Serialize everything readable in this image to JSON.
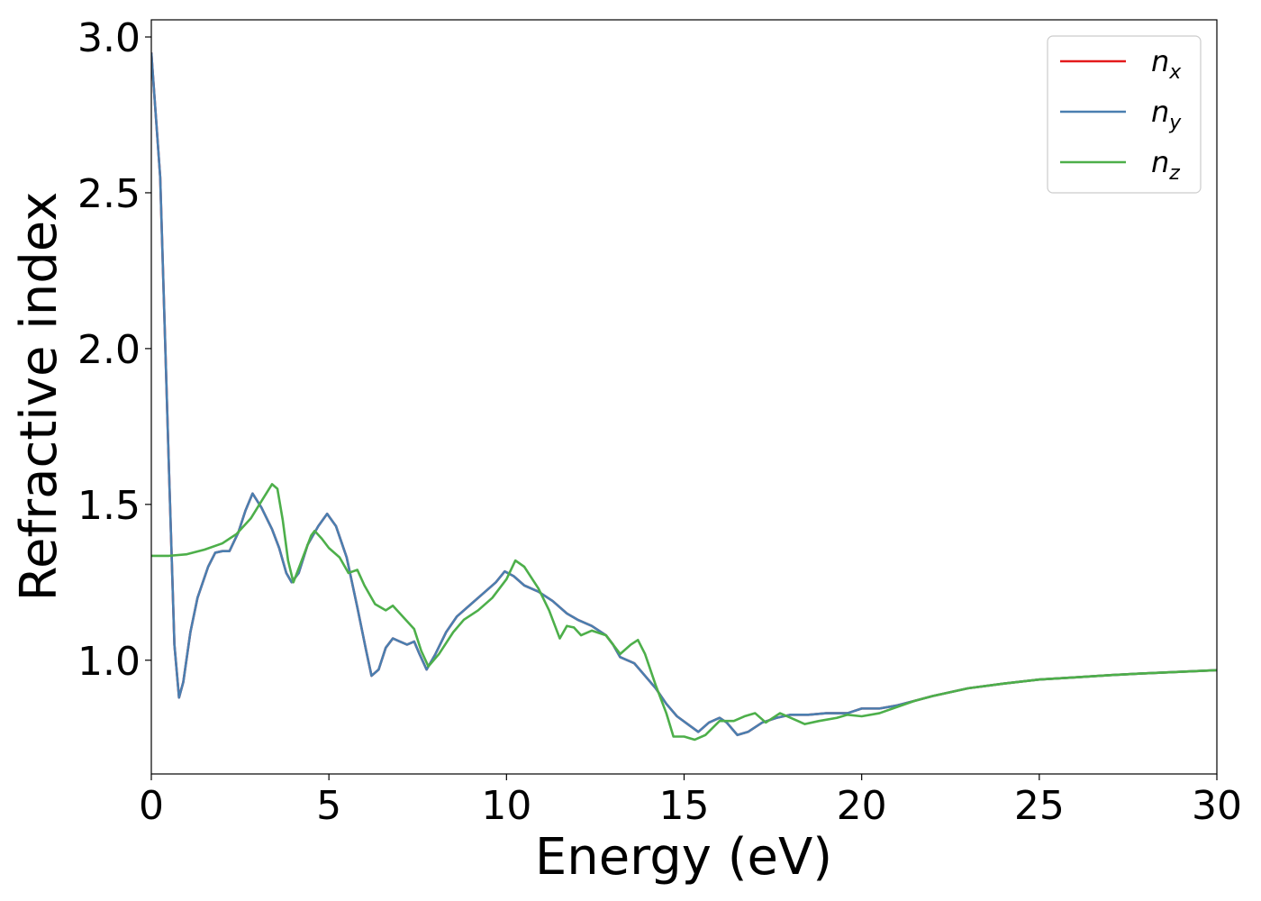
{
  "chart_data": {
    "type": "line",
    "title": "",
    "xlabel": "Energy (eV)",
    "ylabel": "Refractive index",
    "xlim": [
      0,
      30
    ],
    "ylim": [
      0.635,
      3.055
    ],
    "xticks": [
      0,
      5,
      10,
      15,
      20,
      25,
      30
    ],
    "xtick_labels": [
      "0",
      "5",
      "10",
      "15",
      "20",
      "25",
      "30"
    ],
    "yticks": [
      1.0,
      1.5,
      2.0,
      2.5,
      3.0
    ],
    "ytick_labels": [
      "1.0",
      "1.5",
      "2.0",
      "2.5",
      "3.0"
    ],
    "grid": false,
    "legend_position": "top-right",
    "series": [
      {
        "name": "n_x",
        "label_main": "n",
        "label_sub": "x",
        "color": "#e41a1c",
        "points": [
          [
            0,
            2.95
          ],
          [
            0.25,
            2.55
          ],
          [
            0.5,
            1.6
          ],
          [
            0.65,
            1.05
          ],
          [
            0.78,
            0.88
          ],
          [
            0.9,
            0.93
          ],
          [
            1.1,
            1.09
          ],
          [
            1.3,
            1.2
          ],
          [
            1.6,
            1.3
          ],
          [
            1.8,
            1.345
          ],
          [
            2.0,
            1.35
          ],
          [
            2.2,
            1.35
          ],
          [
            2.45,
            1.41
          ],
          [
            2.65,
            1.48
          ],
          [
            2.85,
            1.535
          ],
          [
            3.1,
            1.49
          ],
          [
            3.4,
            1.42
          ],
          [
            3.6,
            1.36
          ],
          [
            3.8,
            1.28
          ],
          [
            3.95,
            1.25
          ],
          [
            4.15,
            1.28
          ],
          [
            4.4,
            1.37
          ],
          [
            4.7,
            1.43
          ],
          [
            4.95,
            1.47
          ],
          [
            5.2,
            1.43
          ],
          [
            5.5,
            1.33
          ],
          [
            5.8,
            1.17
          ],
          [
            6.05,
            1.03
          ],
          [
            6.2,
            0.95
          ],
          [
            6.4,
            0.97
          ],
          [
            6.6,
            1.04
          ],
          [
            6.8,
            1.07
          ],
          [
            7.0,
            1.06
          ],
          [
            7.2,
            1.05
          ],
          [
            7.4,
            1.06
          ],
          [
            7.55,
            1.02
          ],
          [
            7.75,
            0.97
          ],
          [
            8.0,
            1.02
          ],
          [
            8.3,
            1.09
          ],
          [
            8.6,
            1.14
          ],
          [
            9.0,
            1.18
          ],
          [
            9.4,
            1.22
          ],
          [
            9.7,
            1.25
          ],
          [
            9.95,
            1.285
          ],
          [
            10.2,
            1.27
          ],
          [
            10.5,
            1.24
          ],
          [
            10.9,
            1.22
          ],
          [
            11.3,
            1.19
          ],
          [
            11.7,
            1.15
          ],
          [
            12.0,
            1.13
          ],
          [
            12.4,
            1.11
          ],
          [
            12.8,
            1.08
          ],
          [
            13.0,
            1.05
          ],
          [
            13.2,
            1.01
          ],
          [
            13.6,
            0.99
          ],
          [
            13.9,
            0.95
          ],
          [
            14.2,
            0.91
          ],
          [
            14.5,
            0.86
          ],
          [
            14.8,
            0.82
          ],
          [
            15.1,
            0.795
          ],
          [
            15.4,
            0.77
          ],
          [
            15.7,
            0.8
          ],
          [
            16.0,
            0.815
          ],
          [
            16.2,
            0.8
          ],
          [
            16.5,
            0.76
          ],
          [
            16.8,
            0.77
          ],
          [
            17.2,
            0.8
          ],
          [
            17.6,
            0.815
          ],
          [
            18.0,
            0.825
          ],
          [
            18.5,
            0.825
          ],
          [
            19.0,
            0.83
          ],
          [
            19.6,
            0.83
          ],
          [
            20.0,
            0.845
          ],
          [
            20.5,
            0.845
          ],
          [
            21.0,
            0.855
          ],
          [
            21.5,
            0.87
          ],
          [
            22.0,
            0.885
          ],
          [
            23.0,
            0.91
          ],
          [
            24.0,
            0.925
          ],
          [
            25.0,
            0.938
          ],
          [
            26.0,
            0.945
          ],
          [
            27.0,
            0.952
          ],
          [
            28.0,
            0.958
          ],
          [
            29.0,
            0.963
          ],
          [
            30.0,
            0.968
          ]
        ]
      },
      {
        "name": "n_y",
        "label_main": "n",
        "label_sub": "y",
        "color": "#4a7fb0",
        "points": [
          [
            0,
            2.95
          ],
          [
            0.25,
            2.55
          ],
          [
            0.5,
            1.6
          ],
          [
            0.65,
            1.05
          ],
          [
            0.78,
            0.88
          ],
          [
            0.9,
            0.93
          ],
          [
            1.1,
            1.09
          ],
          [
            1.3,
            1.2
          ],
          [
            1.6,
            1.3
          ],
          [
            1.8,
            1.345
          ],
          [
            2.0,
            1.35
          ],
          [
            2.2,
            1.35
          ],
          [
            2.45,
            1.41
          ],
          [
            2.65,
            1.48
          ],
          [
            2.85,
            1.535
          ],
          [
            3.1,
            1.49
          ],
          [
            3.4,
            1.42
          ],
          [
            3.6,
            1.36
          ],
          [
            3.8,
            1.28
          ],
          [
            3.95,
            1.25
          ],
          [
            4.15,
            1.28
          ],
          [
            4.4,
            1.37
          ],
          [
            4.7,
            1.43
          ],
          [
            4.95,
            1.47
          ],
          [
            5.2,
            1.43
          ],
          [
            5.5,
            1.33
          ],
          [
            5.8,
            1.17
          ],
          [
            6.05,
            1.03
          ],
          [
            6.2,
            0.95
          ],
          [
            6.4,
            0.97
          ],
          [
            6.6,
            1.04
          ],
          [
            6.8,
            1.07
          ],
          [
            7.0,
            1.06
          ],
          [
            7.2,
            1.05
          ],
          [
            7.4,
            1.06
          ],
          [
            7.55,
            1.02
          ],
          [
            7.75,
            0.97
          ],
          [
            8.0,
            1.02
          ],
          [
            8.3,
            1.09
          ],
          [
            8.6,
            1.14
          ],
          [
            9.0,
            1.18
          ],
          [
            9.4,
            1.22
          ],
          [
            9.7,
            1.25
          ],
          [
            9.95,
            1.285
          ],
          [
            10.2,
            1.27
          ],
          [
            10.5,
            1.24
          ],
          [
            10.9,
            1.22
          ],
          [
            11.3,
            1.19
          ],
          [
            11.7,
            1.15
          ],
          [
            12.0,
            1.13
          ],
          [
            12.4,
            1.11
          ],
          [
            12.8,
            1.08
          ],
          [
            13.0,
            1.05
          ],
          [
            13.2,
            1.01
          ],
          [
            13.6,
            0.99
          ],
          [
            13.9,
            0.95
          ],
          [
            14.2,
            0.91
          ],
          [
            14.5,
            0.86
          ],
          [
            14.8,
            0.82
          ],
          [
            15.1,
            0.795
          ],
          [
            15.4,
            0.77
          ],
          [
            15.7,
            0.8
          ],
          [
            16.0,
            0.815
          ],
          [
            16.2,
            0.8
          ],
          [
            16.5,
            0.76
          ],
          [
            16.8,
            0.77
          ],
          [
            17.2,
            0.8
          ],
          [
            17.6,
            0.815
          ],
          [
            18.0,
            0.825
          ],
          [
            18.5,
            0.825
          ],
          [
            19.0,
            0.83
          ],
          [
            19.6,
            0.83
          ],
          [
            20.0,
            0.845
          ],
          [
            20.5,
            0.845
          ],
          [
            21.0,
            0.855
          ],
          [
            21.5,
            0.87
          ],
          [
            22.0,
            0.885
          ],
          [
            23.0,
            0.91
          ],
          [
            24.0,
            0.925
          ],
          [
            25.0,
            0.938
          ],
          [
            26.0,
            0.945
          ],
          [
            27.0,
            0.952
          ],
          [
            28.0,
            0.958
          ],
          [
            29.0,
            0.963
          ],
          [
            30.0,
            0.968
          ]
        ]
      },
      {
        "name": "n_z",
        "label_main": "n",
        "label_sub": "z",
        "color": "#4daf4a",
        "points": [
          [
            0,
            1.335
          ],
          [
            0.5,
            1.335
          ],
          [
            1.0,
            1.34
          ],
          [
            1.5,
            1.355
          ],
          [
            2.0,
            1.375
          ],
          [
            2.4,
            1.405
          ],
          [
            2.8,
            1.455
          ],
          [
            3.1,
            1.51
          ],
          [
            3.4,
            1.565
          ],
          [
            3.55,
            1.55
          ],
          [
            3.7,
            1.45
          ],
          [
            3.85,
            1.32
          ],
          [
            4.0,
            1.25
          ],
          [
            4.2,
            1.31
          ],
          [
            4.5,
            1.4
          ],
          [
            4.6,
            1.415
          ],
          [
            4.8,
            1.39
          ],
          [
            5.0,
            1.36
          ],
          [
            5.3,
            1.33
          ],
          [
            5.55,
            1.28
          ],
          [
            5.8,
            1.29
          ],
          [
            6.0,
            1.24
          ],
          [
            6.3,
            1.18
          ],
          [
            6.6,
            1.16
          ],
          [
            6.8,
            1.175
          ],
          [
            7.0,
            1.15
          ],
          [
            7.2,
            1.125
          ],
          [
            7.4,
            1.1
          ],
          [
            7.6,
            1.03
          ],
          [
            7.8,
            0.98
          ],
          [
            8.1,
            1.02
          ],
          [
            8.5,
            1.09
          ],
          [
            8.8,
            1.13
          ],
          [
            9.2,
            1.16
          ],
          [
            9.6,
            1.2
          ],
          [
            9.8,
            1.23
          ],
          [
            10.0,
            1.26
          ],
          [
            10.25,
            1.32
          ],
          [
            10.5,
            1.3
          ],
          [
            10.9,
            1.23
          ],
          [
            11.2,
            1.16
          ],
          [
            11.5,
            1.07
          ],
          [
            11.7,
            1.11
          ],
          [
            11.9,
            1.105
          ],
          [
            12.1,
            1.08
          ],
          [
            12.4,
            1.095
          ],
          [
            12.8,
            1.08
          ],
          [
            13.2,
            1.02
          ],
          [
            13.5,
            1.05
          ],
          [
            13.7,
            1.065
          ],
          [
            13.9,
            1.02
          ],
          [
            14.2,
            0.92
          ],
          [
            14.5,
            0.83
          ],
          [
            14.7,
            0.755
          ],
          [
            15.0,
            0.755
          ],
          [
            15.3,
            0.745
          ],
          [
            15.6,
            0.76
          ],
          [
            16.0,
            0.805
          ],
          [
            16.4,
            0.805
          ],
          [
            16.7,
            0.82
          ],
          [
            17.0,
            0.83
          ],
          [
            17.3,
            0.8
          ],
          [
            17.7,
            0.83
          ],
          [
            18.0,
            0.815
          ],
          [
            18.4,
            0.795
          ],
          [
            18.8,
            0.805
          ],
          [
            19.3,
            0.815
          ],
          [
            19.6,
            0.825
          ],
          [
            20.0,
            0.82
          ],
          [
            20.5,
            0.83
          ],
          [
            21.0,
            0.85
          ],
          [
            21.5,
            0.87
          ],
          [
            22.0,
            0.885
          ],
          [
            23.0,
            0.91
          ],
          [
            24.0,
            0.925
          ],
          [
            25.0,
            0.938
          ],
          [
            26.0,
            0.945
          ],
          [
            27.0,
            0.952
          ],
          [
            28.0,
            0.958
          ],
          [
            29.0,
            0.963
          ],
          [
            30.0,
            0.968
          ]
        ]
      }
    ]
  }
}
